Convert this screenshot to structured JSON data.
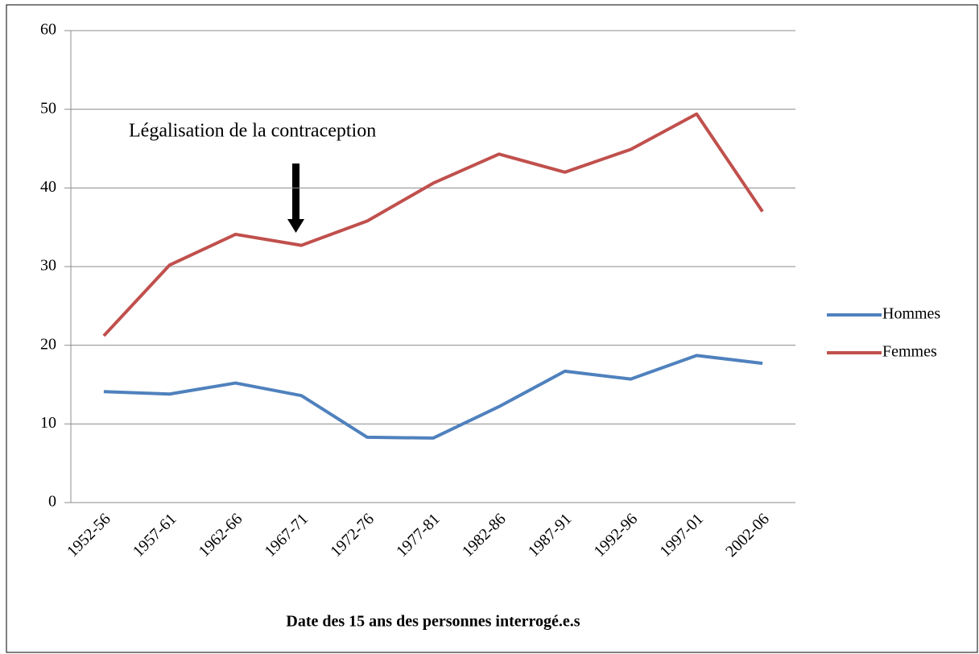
{
  "chart_data": {
    "type": "line",
    "annotation": "Légalisation de la contraception",
    "xlabel": "Date des 15 ans des personnes interrogé.e.s",
    "categories": [
      "1952-56",
      "1957-61",
      "1962-66",
      "1967-71",
      "1972-76",
      "1977-81",
      "1982-86",
      "1987-91",
      "1992-96",
      "1997-01",
      "2002-06"
    ],
    "series": [
      {
        "name": "Hommes",
        "color": "#4f81bd",
        "values": [
          14.1,
          13.8,
          15.2,
          13.6,
          8.3,
          8.2,
          12.2,
          16.7,
          15.7,
          18.7,
          17.7
        ]
      },
      {
        "name": "Femmes",
        "color": "#c0504d",
        "values": [
          21.2,
          30.2,
          34.1,
          32.7,
          35.8,
          40.6,
          44.3,
          42.0,
          44.9,
          49.4,
          37.0
        ]
      }
    ],
    "ylim": [
      0,
      60
    ],
    "yticks": [
      0,
      10,
      20,
      30,
      40,
      50,
      60
    ],
    "grid": true,
    "legend": "right"
  }
}
